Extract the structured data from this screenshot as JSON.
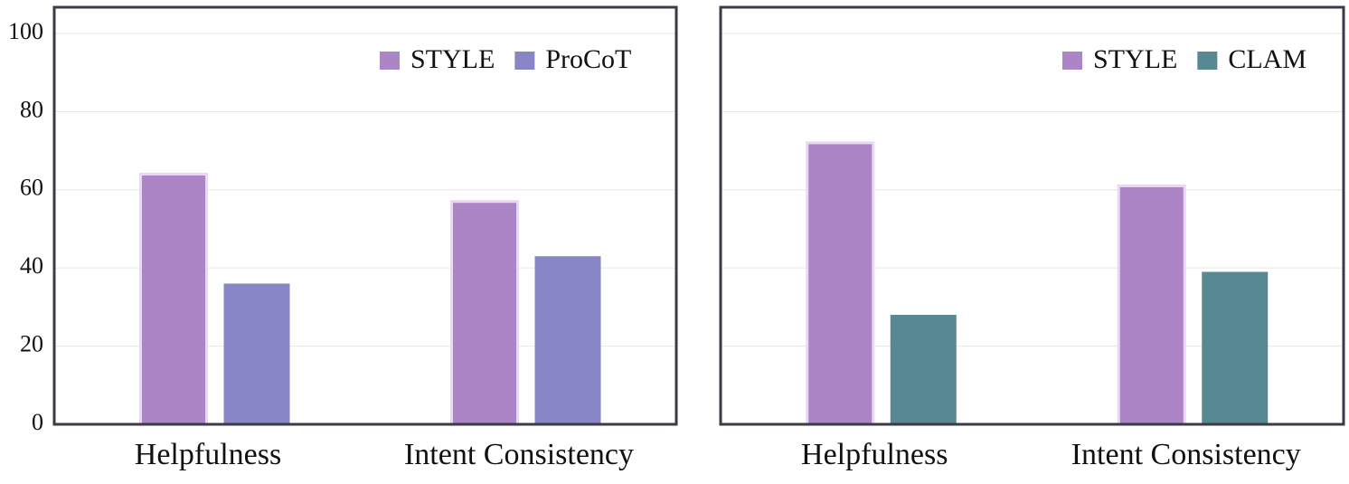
{
  "chart_data": [
    {
      "type": "bar",
      "categories": [
        "Helpfulness",
        "Intent Consistency"
      ],
      "series": [
        {
          "name": "STYLE",
          "color": "#ab85c6",
          "values": [
            64,
            57
          ]
        },
        {
          "name": "ProCoT",
          "color": "#8886c6",
          "values": [
            36,
            43
          ]
        }
      ],
      "ylim": [
        0,
        106.7
      ],
      "yticks": [
        0,
        20,
        40,
        60,
        80,
        100
      ],
      "grid": true,
      "legend": "upper right"
    },
    {
      "type": "bar",
      "categories": [
        "Helpfulness",
        "Intent Consistency"
      ],
      "series": [
        {
          "name": "STYLE",
          "color": "#ab85c6",
          "values": [
            72,
            61
          ]
        },
        {
          "name": "CLAM",
          "color": "#588892",
          "values": [
            28,
            39
          ]
        }
      ],
      "ylim": [
        0,
        106.7
      ],
      "gridlines": [
        20,
        40,
        60,
        80,
        100
      ],
      "grid": true,
      "legend": "upper right"
    }
  ]
}
